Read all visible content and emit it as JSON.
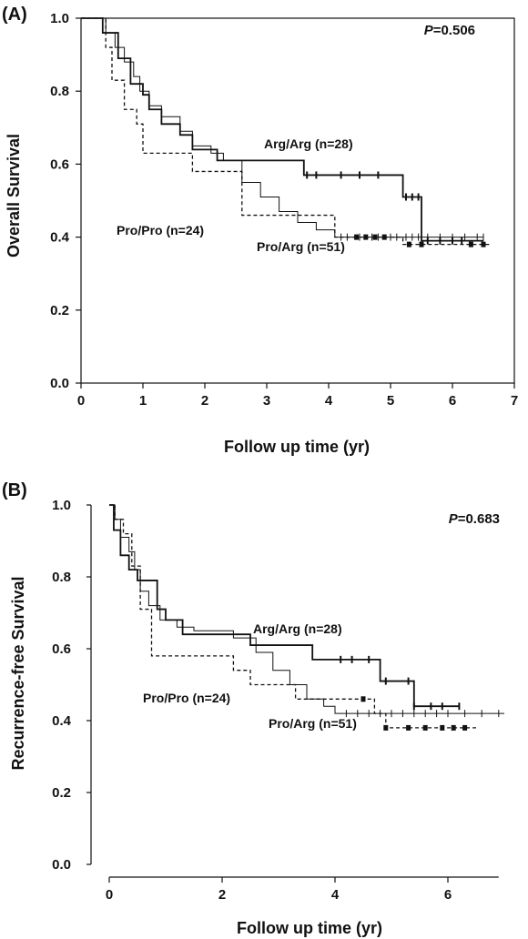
{
  "chart_data": [
    {
      "type": "line",
      "panel_label": "(A)",
      "title": "",
      "xlabel": "Follow up time (yr)",
      "ylabel": "Overall Survival",
      "xlim": [
        0,
        7
      ],
      "ylim": [
        0,
        1.0
      ],
      "xticks": [
        "0",
        "1",
        "2",
        "3",
        "4",
        "5",
        "6",
        "7"
      ],
      "yticks": [
        "0.0",
        "0.2",
        "0.4",
        "0.6",
        "0.8",
        "1.0"
      ],
      "annotation_p_italic": "P",
      "annotation_p_value": "=0.506",
      "grid": false,
      "series": [
        {
          "name": "Arg/Arg (n=28)",
          "style": "solid-thick",
          "x": [
            0,
            0.3,
            0.35,
            0.6,
            0.8,
            1.0,
            1.1,
            1.3,
            1.6,
            1.8,
            2.2,
            2.6,
            3.6,
            4.1,
            5.2,
            5.5,
            6.5
          ],
          "y": [
            1.0,
            1.0,
            0.96,
            0.89,
            0.82,
            0.79,
            0.75,
            0.71,
            0.68,
            0.64,
            0.61,
            0.61,
            0.57,
            0.57,
            0.51,
            0.39,
            0.39
          ],
          "censor_x": [
            3.65,
            3.8,
            4.2,
            4.5,
            4.8,
            5.25,
            5.35,
            5.45,
            5.6,
            5.8,
            6.0,
            6.15
          ]
        },
        {
          "name": "Pro/Arg (n=51)",
          "style": "solid-thin",
          "x": [
            0,
            0.25,
            0.4,
            0.55,
            0.7,
            0.85,
            0.95,
            1.1,
            1.3,
            1.6,
            1.8,
            2.1,
            2.3,
            2.6,
            2.9,
            3.2,
            3.5,
            3.8,
            4.1,
            6.5
          ],
          "y": [
            1.0,
            1.0,
            0.96,
            0.92,
            0.88,
            0.84,
            0.8,
            0.76,
            0.73,
            0.69,
            0.65,
            0.63,
            0.61,
            0.55,
            0.51,
            0.47,
            0.44,
            0.42,
            0.4,
            0.4
          ],
          "censor_x": [
            4.2,
            4.3,
            4.5,
            4.7,
            4.8,
            5.0,
            5.1,
            5.25,
            5.35,
            5.45,
            5.6,
            5.8,
            6.0,
            6.2,
            6.4,
            6.5
          ]
        },
        {
          "name": "Pro/Pro (n=24)",
          "style": "dashed",
          "x": [
            0,
            0.3,
            0.4,
            0.5,
            0.7,
            0.9,
            1.0,
            1.7,
            1.8,
            2.5,
            2.6,
            4.1,
            5.2,
            6.6
          ],
          "y": [
            1.0,
            1.0,
            0.92,
            0.83,
            0.75,
            0.71,
            0.63,
            0.63,
            0.58,
            0.58,
            0.46,
            0.4,
            0.38,
            0.38
          ],
          "censor_x": [
            4.45,
            4.6,
            4.75,
            4.9,
            5.3,
            5.5,
            6.3,
            6.5
          ]
        }
      ]
    },
    {
      "type": "line",
      "panel_label": "(B)",
      "title": "",
      "xlabel": "Follow up time (yr)",
      "ylabel": "Recurrence-free Survival",
      "xlim": [
        0,
        7
      ],
      "ylim": [
        0,
        1.0
      ],
      "xticks": [
        "0",
        "2",
        "4",
        "6"
      ],
      "yticks": [
        "0.0",
        "0.2",
        "0.4",
        "0.6",
        "0.8",
        "1.0"
      ],
      "annotation_p_italic": "P",
      "annotation_p_value": "=0.683",
      "grid": false,
      "series": [
        {
          "name": "Arg/Arg (n=28)",
          "style": "solid-thick",
          "x": [
            0,
            0.08,
            0.2,
            0.35,
            0.5,
            0.85,
            1.0,
            1.3,
            2.5,
            3.6,
            4.8,
            5.4,
            6.2
          ],
          "y": [
            1.0,
            0.93,
            0.86,
            0.82,
            0.79,
            0.71,
            0.68,
            0.64,
            0.61,
            0.57,
            0.51,
            0.44,
            0.44
          ],
          "censor_x": [
            4.1,
            4.3,
            4.6,
            4.9,
            5.3,
            5.4,
            5.7,
            5.9,
            6.2
          ]
        },
        {
          "name": "Pro/Arg (n=51)",
          "style": "solid-thin",
          "x": [
            0,
            0.1,
            0.2,
            0.35,
            0.45,
            0.55,
            0.7,
            0.9,
            1.2,
            1.5,
            2.2,
            2.6,
            2.9,
            3.2,
            3.5,
            3.8,
            4.0,
            7.0
          ],
          "y": [
            1.0,
            0.96,
            0.91,
            0.87,
            0.82,
            0.76,
            0.72,
            0.68,
            0.66,
            0.65,
            0.63,
            0.59,
            0.54,
            0.5,
            0.46,
            0.44,
            0.42,
            0.42
          ],
          "censor_x": [
            4.2,
            4.4,
            4.6,
            4.8,
            5.0,
            5.2,
            5.4,
            5.6,
            5.8,
            6.0,
            6.3,
            6.6,
            6.9
          ]
        },
        {
          "name": "Pro/Pro (n=24)",
          "style": "dashed",
          "x": [
            0,
            0.1,
            0.25,
            0.4,
            0.55,
            0.75,
            1.4,
            1.6,
            2.2,
            2.5,
            3.1,
            3.3,
            4.7,
            4.9,
            6.5
          ],
          "y": [
            1.0,
            0.96,
            0.92,
            0.83,
            0.71,
            0.58,
            0.58,
            0.58,
            0.54,
            0.5,
            0.5,
            0.46,
            0.42,
            0.38,
            0.38
          ],
          "censor_x": [
            4.5,
            4.9,
            5.3,
            5.6,
            5.9,
            6.1,
            6.3
          ]
        }
      ]
    }
  ]
}
